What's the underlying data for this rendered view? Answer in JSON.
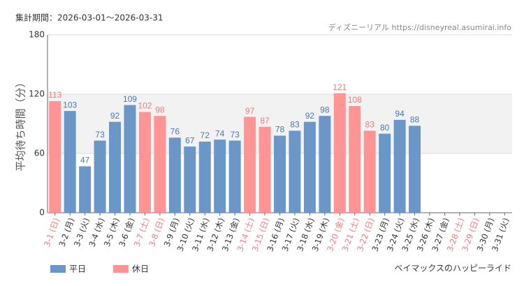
{
  "chart_data": {
    "type": "bar",
    "title": "集計期間：2026-03-01～2026-03-31",
    "source": "ディズニーリアル https://disneyreal.asumirai.info",
    "subtitle": "ベイマックスのハッピーライド",
    "y_label": "平均待ち時間（分）",
    "categories": [
      "3-1 (日)",
      "3-2 (月)",
      "3-3 (火)",
      "3-4 (水)",
      "3-5 (木)",
      "3-6 (金)",
      "3-7 (土)",
      "3-8 (日)",
      "3-9 (月)",
      "3-10 (火)",
      "3-11 (水)",
      "3-12 (木)",
      "3-13 (金)",
      "3-14 (土)",
      "3-15 (日)",
      "3-16 (月)",
      "3-17 (火)",
      "3-18 (水)",
      "3-19 (木)",
      "3-20 (金)",
      "3-21 (土)",
      "3-22 (日)",
      "3-23 (月)",
      "3-24 (火)",
      "3-25 (水)",
      "3-26 (木)",
      "3-27 (金)",
      "3-28 (土)",
      "3-29 (日)",
      "3-30 (月)",
      "3-31 (火)"
    ],
    "category_colors": [
      "#f07b7b",
      "#333",
      "#333",
      "#333",
      "#333",
      "#333",
      "#f07b7b",
      "#f07b7b",
      "#333",
      "#333",
      "#333",
      "#333",
      "#333",
      "#f07b7b",
      "#f07b7b",
      "#333",
      "#333",
      "#333",
      "#333",
      "#f07b7b",
      "#f07b7b",
      "#f07b7b",
      "#333",
      "#333",
      "#333",
      "#333",
      "#333",
      "#f07b7b",
      "#f07b7b",
      "#333",
      "#333"
    ],
    "series": [
      {
        "name": "平日",
        "color": "#6a97c8",
        "label_color": "#4a78ad",
        "values": [
          null,
          103,
          47,
          73,
          92,
          109,
          null,
          null,
          76,
          67,
          72,
          74,
          73,
          null,
          null,
          78,
          83,
          92,
          98,
          null,
          null,
          null,
          80,
          94,
          88,
          null,
          null,
          null,
          null,
          null,
          null
        ]
      },
      {
        "name": "休日",
        "color": "#ff9494",
        "label_color": "#f07b7b",
        "values": [
          113,
          null,
          null,
          null,
          null,
          null,
          102,
          98,
          null,
          null,
          null,
          null,
          null,
          97,
          87,
          null,
          null,
          null,
          null,
          121,
          108,
          83,
          null,
          null,
          null,
          null,
          null,
          null,
          null,
          null,
          null
        ]
      }
    ],
    "ylim": [
      0,
      180
    ],
    "yticks": [
      0,
      60,
      120,
      180
    ],
    "shaded_range": [
      60,
      120
    ],
    "grid": true
  }
}
